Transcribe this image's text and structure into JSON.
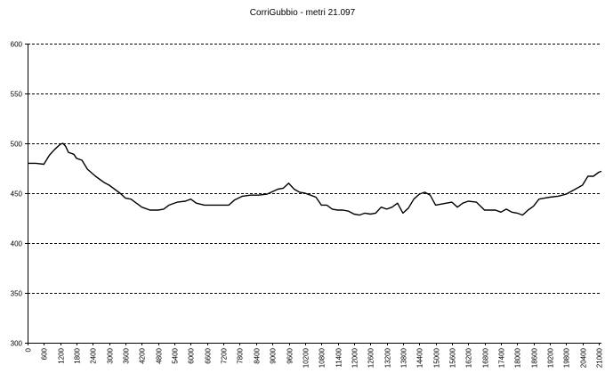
{
  "chart_data": {
    "type": "line",
    "title": "CorriGubbio - metri 21.097",
    "xlabel": "",
    "ylabel": "",
    "xlim": [
      0,
      21097
    ],
    "ylim": [
      300,
      600
    ],
    "y_ticks": [
      300,
      350,
      400,
      450,
      500,
      550,
      600
    ],
    "x_ticks": [
      0,
      600,
      1200,
      1800,
      2400,
      3000,
      3600,
      4200,
      4800,
      5400,
      6000,
      6600,
      7200,
      7800,
      8400,
      9000,
      9600,
      10200,
      10800,
      11400,
      12000,
      12600,
      13200,
      13800,
      14400,
      15000,
      15600,
      16200,
      16800,
      17400,
      18000,
      18600,
      19200,
      19800,
      20400,
      21000
    ],
    "grid": {
      "horizontal": true,
      "style": "dashed"
    },
    "legend": "none",
    "line_color": "#000000",
    "series": [
      {
        "x": [
          0,
          300,
          600,
          800,
          1000,
          1200,
          1300,
          1400,
          1500,
          1700,
          1800,
          2000,
          2200,
          2500,
          2800,
          3000,
          3200,
          3400,
          3600,
          3800,
          4000,
          4200,
          4500,
          4800,
          5000,
          5200,
          5500,
          5800,
          6000,
          6200,
          6500,
          6800,
          7000,
          7200,
          7400,
          7600,
          7900,
          8200,
          8500,
          8800,
          9200,
          9400,
          9600,
          9800,
          10000,
          10200,
          10400,
          10600,
          10800,
          11000,
          11200,
          11400,
          11600,
          11800,
          12000,
          12200,
          12400,
          12600,
          12800,
          13000,
          13200,
          13400,
          13600,
          13800,
          14000,
          14200,
          14400,
          14600,
          14800,
          15000,
          15200,
          15400,
          15600,
          15800,
          16000,
          16200,
          16500,
          16800,
          17000,
          17200,
          17400,
          17600,
          17800,
          18000,
          18200,
          18400,
          18600,
          18800,
          19000,
          19200,
          19500,
          19800,
          20000,
          20200,
          20400,
          20600,
          20800,
          21000,
          21097
        ],
        "y": [
          480,
          480,
          479,
          488,
          494,
          499,
          500,
          497,
          491,
          489,
          485,
          483,
          474,
          467,
          461,
          458,
          454,
          450,
          445,
          444,
          440,
          436,
          433,
          433,
          434,
          438,
          441,
          442,
          444,
          440,
          438,
          438,
          438,
          438,
          438,
          443,
          447,
          448,
          448,
          449,
          454,
          455,
          460,
          454,
          451,
          450,
          448,
          446,
          438,
          438,
          434,
          433,
          433,
          432,
          429,
          428,
          430,
          429,
          430,
          436,
          434,
          436,
          440,
          430,
          435,
          444,
          449,
          451,
          448,
          438,
          439,
          440,
          441,
          436,
          440,
          442,
          441,
          433,
          433,
          433,
          431,
          434,
          431,
          430,
          428,
          433,
          437,
          444,
          445,
          446,
          447,
          449,
          452,
          455,
          458,
          467,
          467,
          471,
          472
        ]
      }
    ]
  }
}
